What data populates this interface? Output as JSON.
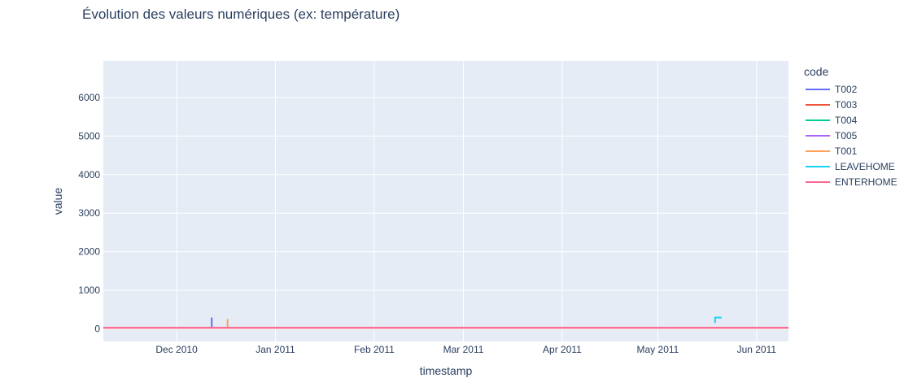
{
  "chart_data": {
    "type": "line",
    "title": "Évolution des valeurs numériques (ex: température)",
    "xlabel": "timestamp",
    "ylabel": "value",
    "xlim": [
      "2010-11-08",
      "2011-06-11"
    ],
    "ylim": [
      -330,
      6950
    ],
    "x_ticks": [
      {
        "date": "2010-12-01",
        "label": "Dec 2010"
      },
      {
        "date": "2011-01-01",
        "label": "Jan 2011"
      },
      {
        "date": "2011-02-01",
        "label": "Feb 2011"
      },
      {
        "date": "2011-03-01",
        "label": "Mar 2011"
      },
      {
        "date": "2011-04-01",
        "label": "Apr 2011"
      },
      {
        "date": "2011-05-01",
        "label": "May 2011"
      },
      {
        "date": "2011-06-01",
        "label": "Jun 2011"
      }
    ],
    "y_ticks": [
      0,
      1000,
      2000,
      3000,
      4000,
      5000,
      6000
    ],
    "grid": true,
    "legend_title": "code",
    "legend_position": "right",
    "series": [
      {
        "name": "T002",
        "color": "#636efa",
        "x": [
          "2010-11-08",
          "2010-12-12",
          "2010-12-12",
          "2010-12-12",
          "2010-12-13",
          "2011-06-11"
        ],
        "y": [
          20,
          20,
          290,
          20,
          20,
          20
        ]
      },
      {
        "name": "T003",
        "color": "#ef553b",
        "x": [
          "2010-11-08",
          "2011-06-11"
        ],
        "y": [
          20,
          20
        ]
      },
      {
        "name": "T004",
        "color": "#00cc96",
        "x": [
          "2010-11-08",
          "2011-06-11"
        ],
        "y": [
          18,
          18
        ]
      },
      {
        "name": "T005",
        "color": "#ab63fa",
        "x": [
          "2010-11-08",
          "2011-06-11"
        ],
        "y": [
          19,
          19
        ]
      },
      {
        "name": "T001",
        "color": "#ffa15a",
        "x": [
          "2010-11-08",
          "2010-12-17",
          "2010-12-17",
          "2010-12-17",
          "2010-12-18",
          "2011-06-11"
        ],
        "y": [
          21,
          21,
          250,
          21,
          21,
          21
        ]
      },
      {
        "name": "LEAVEHOME",
        "color": "#19d3f3",
        "x": [
          "2011-05-19",
          "2011-05-19",
          "2011-05-20",
          "2011-05-21"
        ],
        "y": [
          150,
          290,
          290,
          290
        ]
      },
      {
        "name": "ENTERHOME",
        "color": "#ff6692",
        "x": [
          "2010-11-08",
          "2011-06-11"
        ],
        "y": [
          22,
          22
        ]
      }
    ]
  }
}
